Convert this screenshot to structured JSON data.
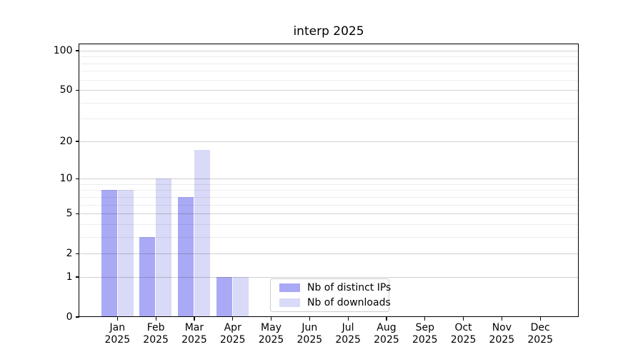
{
  "title": "interp 2025",
  "chart_data": {
    "type": "bar",
    "title": "interp 2025",
    "months": [
      "Jan",
      "Feb",
      "Mar",
      "Apr",
      "May",
      "Jun",
      "Jul",
      "Aug",
      "Sep",
      "Oct",
      "Nov",
      "Dec"
    ],
    "year_label": "2025",
    "series": [
      {
        "name": "Nb of distinct IPs",
        "color": "#a9a9f5",
        "values": [
          8,
          3,
          7,
          1,
          0,
          0,
          0,
          0,
          0,
          0,
          0,
          0
        ]
      },
      {
        "name": "Nb of downloads",
        "color": "#d9d9f8",
        "values": [
          8,
          10,
          17,
          1,
          0,
          0,
          0,
          0,
          0,
          0,
          0,
          0
        ]
      }
    ],
    "y_scale": "log1p",
    "y_ticks": [
      100,
      50,
      20,
      10,
      5,
      2,
      1,
      0
    ],
    "y_minor_ticks": [
      3,
      4,
      6,
      7,
      8,
      9,
      30,
      40,
      60,
      70,
      80,
      90,
      110
    ],
    "ylim": [
      0,
      113
    ],
    "grid": true,
    "legend_position": "lower-center-inside"
  }
}
